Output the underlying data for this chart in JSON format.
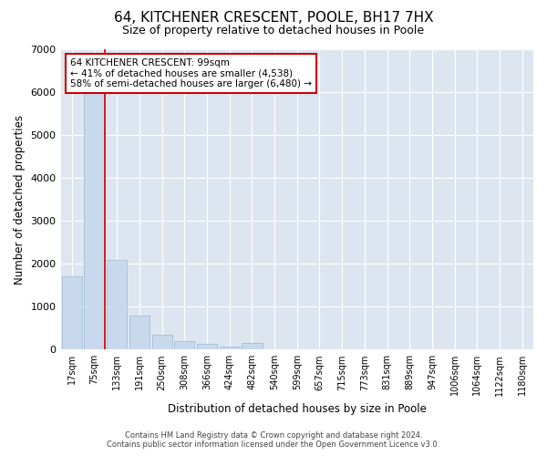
{
  "title": "64, KITCHENER CRESCENT, POOLE, BH17 7HX",
  "subtitle": "Size of property relative to detached houses in Poole",
  "xlabel": "Distribution of detached houses by size in Poole",
  "ylabel": "Number of detached properties",
  "categories": [
    "17sqm",
    "75sqm",
    "133sqm",
    "191sqm",
    "250sqm",
    "308sqm",
    "366sqm",
    "424sqm",
    "482sqm",
    "540sqm",
    "599sqm",
    "657sqm",
    "715sqm",
    "773sqm",
    "831sqm",
    "889sqm",
    "947sqm",
    "1006sqm",
    "1064sqm",
    "1122sqm",
    "1180sqm"
  ],
  "values": [
    1700,
    6000,
    2100,
    800,
    340,
    200,
    130,
    80,
    150,
    0,
    0,
    0,
    0,
    0,
    0,
    0,
    0,
    0,
    0,
    0,
    0
  ],
  "bar_color": "#c9d9ed",
  "bar_edge_color": "#9db8d2",
  "vline_color": "#cc0000",
  "annotation_text": "64 KITCHENER CRESCENT: 99sqm\n← 41% of detached houses are smaller (4,538)\n58% of semi-detached houses are larger (6,480) →",
  "annotation_box_color": "#ffffff",
  "annotation_box_edge": "#cc0000",
  "ylim": [
    0,
    7000
  ],
  "yticks": [
    0,
    1000,
    2000,
    3000,
    4000,
    5000,
    6000,
    7000
  ],
  "plot_bg_color": "#dde6f0",
  "footer_line1": "Contains HM Land Registry data © Crown copyright and database right 2024.",
  "footer_line2": "Contains public sector information licensed under the Open Government Licence v3.0."
}
